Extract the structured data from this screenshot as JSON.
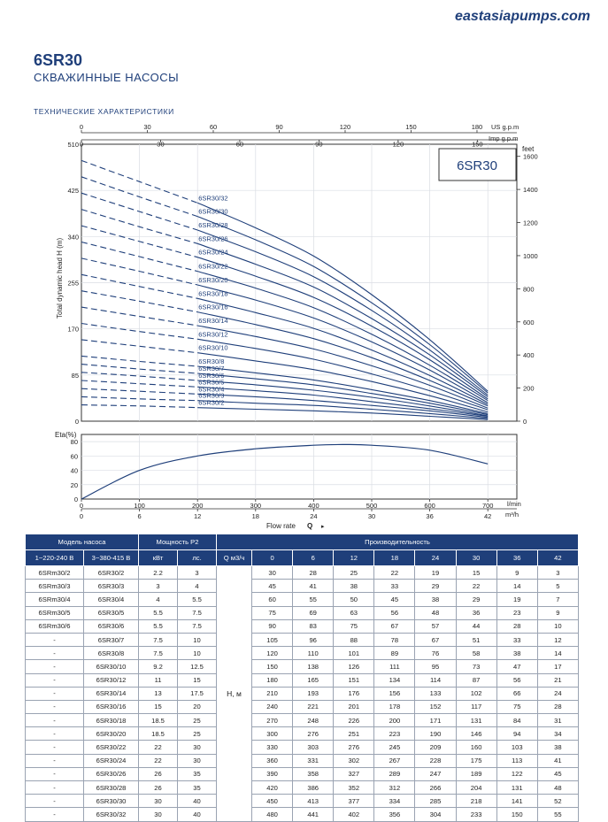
{
  "header": {
    "site": "eastasiapumps.com",
    "model": "6SR30",
    "subtitle": "СКВАЖИННЫЕ НАСОСЫ",
    "section": "ТЕХНИЧЕСКИЕ ХАРАКТЕРИСТИКИ"
  },
  "chart_data": [
    {
      "type": "line",
      "box_label": "6SR30",
      "ylabel": "Total dynamic head H (m)",
      "ylabel_right": "feet",
      "xlabel_top_1": "US g.p.m",
      "xlabel_top_2": "Imp g.p.m",
      "y_ticks": [
        0,
        85,
        170,
        255,
        340,
        425,
        510
      ],
      "ylim": [
        0,
        510
      ],
      "feet_ticks": [
        0,
        200,
        400,
        600,
        800,
        1000,
        1200,
        1400,
        1600
      ],
      "us_gpm_ticks": [
        0,
        30,
        60,
        90,
        120,
        150,
        180
      ],
      "imp_gpm_ticks": [
        0,
        30,
        60,
        90,
        120,
        150
      ],
      "x_unit": "m³/h",
      "xlim": [
        0,
        45
      ],
      "x": [
        0,
        6,
        12,
        18,
        24,
        30,
        36,
        42
      ],
      "series": [
        {
          "name": "6SR30/2",
          "values": [
            30,
            28,
            25,
            22,
            19,
            15,
            9,
            3
          ]
        },
        {
          "name": "6SR30/3",
          "values": [
            45,
            41,
            38,
            33,
            29,
            22,
            14,
            5
          ]
        },
        {
          "name": "6SR30/4",
          "values": [
            60,
            55,
            50,
            45,
            38,
            29,
            19,
            7
          ]
        },
        {
          "name": "6SR30/5",
          "values": [
            75,
            69,
            63,
            56,
            48,
            36,
            23,
            9
          ]
        },
        {
          "name": "6SR30/6",
          "values": [
            90,
            83,
            75,
            67,
            57,
            44,
            28,
            10
          ]
        },
        {
          "name": "6SR30/7",
          "values": [
            105,
            96,
            88,
            78,
            67,
            51,
            33,
            12
          ]
        },
        {
          "name": "6SR30/8",
          "values": [
            120,
            110,
            101,
            89,
            76,
            58,
            38,
            14
          ]
        },
        {
          "name": "6SR30/10",
          "values": [
            150,
            138,
            126,
            111,
            95,
            73,
            47,
            17
          ]
        },
        {
          "name": "6SR30/12",
          "values": [
            180,
            165,
            151,
            134,
            114,
            87,
            56,
            21
          ]
        },
        {
          "name": "6SR30/14",
          "values": [
            210,
            193,
            176,
            156,
            133,
            102,
            66,
            24
          ]
        },
        {
          "name": "6SR30/16",
          "values": [
            240,
            221,
            201,
            178,
            152,
            117,
            75,
            28
          ]
        },
        {
          "name": "6SR30/18",
          "values": [
            270,
            248,
            226,
            200,
            171,
            131,
            84,
            31
          ]
        },
        {
          "name": "6SR30/20",
          "values": [
            300,
            276,
            251,
            223,
            190,
            146,
            94,
            34
          ]
        },
        {
          "name": "6SR30/22",
          "values": [
            330,
            303,
            276,
            245,
            209,
            160,
            103,
            38
          ]
        },
        {
          "name": "6SR30/24",
          "values": [
            360,
            331,
            302,
            267,
            228,
            175,
            113,
            41
          ]
        },
        {
          "name": "6SR30/26",
          "values": [
            390,
            358,
            327,
            289,
            247,
            189,
            122,
            45
          ]
        },
        {
          "name": "6SR30/28",
          "values": [
            420,
            386,
            352,
            312,
            266,
            204,
            131,
            48
          ]
        },
        {
          "name": "6SR30/30",
          "values": [
            450,
            413,
            377,
            334,
            285,
            218,
            141,
            52
          ]
        },
        {
          "name": "6SR30/32",
          "values": [
            480,
            441,
            402,
            356,
            304,
            233,
            150,
            55
          ]
        }
      ]
    },
    {
      "type": "line",
      "ylabel": "Eta(%)",
      "y_ticks": [
        0,
        20,
        40,
        60,
        80
      ],
      "ylim": [
        0,
        90
      ],
      "xlabel": "Flow rate",
      "xlabel_symbol": "Q",
      "lmin_label": "l/min",
      "m3h_label": "m³/h",
      "lmin_ticks": [
        0,
        100,
        200,
        300,
        400,
        500,
        600,
        700
      ],
      "m3h_ticks": [
        0,
        6,
        12,
        18,
        24,
        30,
        36,
        42
      ],
      "xlim": [
        0,
        45
      ],
      "x": [
        0,
        6,
        12,
        18,
        24,
        27,
        30,
        36,
        42
      ],
      "values": [
        0,
        40,
        60,
        70,
        75,
        76,
        75,
        68,
        49
      ]
    }
  ],
  "table": {
    "header1": [
      "Модель насоса",
      "Мощность P2",
      "Производительность"
    ],
    "header2": [
      "1~220-240 В",
      "3~380-415 В",
      "кВт",
      "лс.",
      "Q м3/ч",
      "0",
      "6",
      "12",
      "18",
      "24",
      "30",
      "36",
      "42"
    ],
    "unit": "Н, м",
    "rows": [
      [
        "6SRm30/2",
        "6SR30/2",
        "2.2",
        "3",
        "30",
        "28",
        "25",
        "22",
        "19",
        "15",
        "9",
        "3"
      ],
      [
        "6SRm30/3",
        "6SR30/3",
        "3",
        "4",
        "45",
        "41",
        "38",
        "33",
        "29",
        "22",
        "14",
        "5"
      ],
      [
        "6SRm30/4",
        "6SR30/4",
        "4",
        "5.5",
        "60",
        "55",
        "50",
        "45",
        "38",
        "29",
        "19",
        "7"
      ],
      [
        "6SRm30/5",
        "6SR30/5",
        "5.5",
        "7.5",
        "75",
        "69",
        "63",
        "56",
        "48",
        "36",
        "23",
        "9"
      ],
      [
        "6SRm30/6",
        "6SR30/6",
        "5.5",
        "7.5",
        "90",
        "83",
        "75",
        "67",
        "57",
        "44",
        "28",
        "10"
      ],
      [
        "-",
        "6SR30/7",
        "7.5",
        "10",
        "105",
        "96",
        "88",
        "78",
        "67",
        "51",
        "33",
        "12"
      ],
      [
        "-",
        "6SR30/8",
        "7.5",
        "10",
        "120",
        "110",
        "101",
        "89",
        "76",
        "58",
        "38",
        "14"
      ],
      [
        "-",
        "6SR30/10",
        "9.2",
        "12.5",
        "150",
        "138",
        "126",
        "111",
        "95",
        "73",
        "47",
        "17"
      ],
      [
        "-",
        "6SR30/12",
        "11",
        "15",
        "180",
        "165",
        "151",
        "134",
        "114",
        "87",
        "56",
        "21"
      ],
      [
        "-",
        "6SR30/14",
        "13",
        "17.5",
        "210",
        "193",
        "176",
        "156",
        "133",
        "102",
        "66",
        "24"
      ],
      [
        "-",
        "6SR30/16",
        "15",
        "20",
        "240",
        "221",
        "201",
        "178",
        "152",
        "117",
        "75",
        "28"
      ],
      [
        "-",
        "6SR30/18",
        "18.5",
        "25",
        "270",
        "248",
        "226",
        "200",
        "171",
        "131",
        "84",
        "31"
      ],
      [
        "-",
        "6SR30/20",
        "18.5",
        "25",
        "300",
        "276",
        "251",
        "223",
        "190",
        "146",
        "94",
        "34"
      ],
      [
        "-",
        "6SR30/22",
        "22",
        "30",
        "330",
        "303",
        "276",
        "245",
        "209",
        "160",
        "103",
        "38"
      ],
      [
        "-",
        "6SR30/24",
        "22",
        "30",
        "360",
        "331",
        "302",
        "267",
        "228",
        "175",
        "113",
        "41"
      ],
      [
        "-",
        "6SR30/26",
        "26",
        "35",
        "390",
        "358",
        "327",
        "289",
        "247",
        "189",
        "122",
        "45"
      ],
      [
        "-",
        "6SR30/28",
        "26",
        "35",
        "420",
        "386",
        "352",
        "312",
        "266",
        "204",
        "131",
        "48"
      ],
      [
        "-",
        "6SR30/30",
        "30",
        "40",
        "450",
        "413",
        "377",
        "334",
        "285",
        "218",
        "141",
        "52"
      ],
      [
        "-",
        "6SR30/32",
        "30",
        "40",
        "480",
        "441",
        "402",
        "356",
        "304",
        "233",
        "150",
        "55"
      ]
    ]
  },
  "colors": {
    "accent": "#1f3f7a",
    "curve": "#1f3f7a",
    "grid": "#dadde3",
    "border": "#333333"
  }
}
